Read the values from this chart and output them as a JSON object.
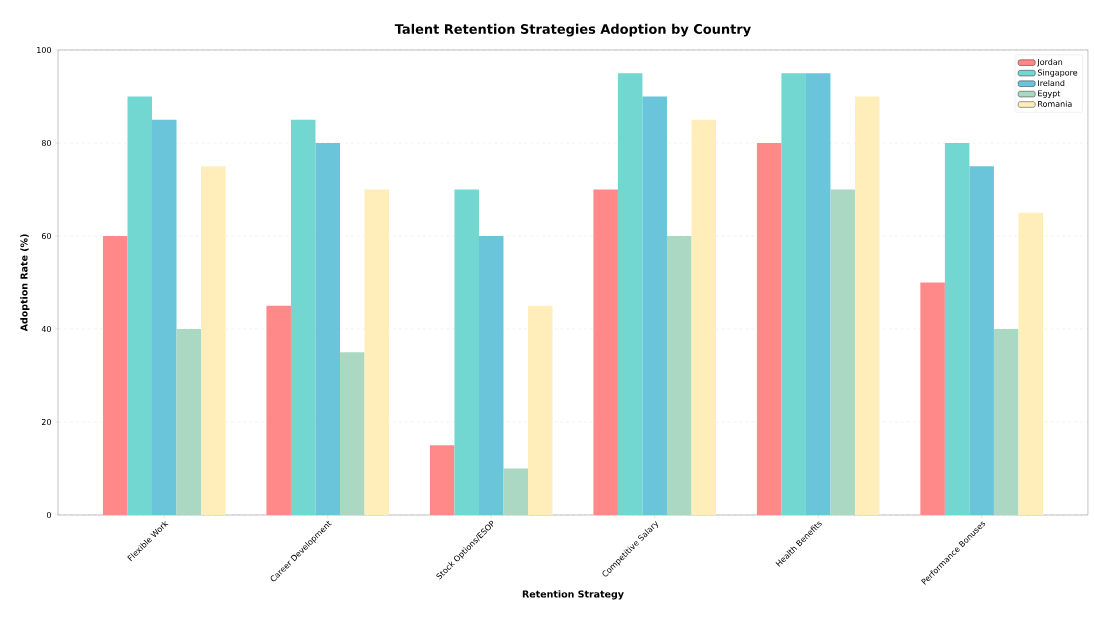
{
  "chart_data": {
    "type": "bar",
    "title": "Talent Retention Strategies Adoption by Country",
    "xlabel": "Retention Strategy",
    "ylabel": "Adoption Rate (%)",
    "categories": [
      "Flexible Work",
      "Career Development",
      "Stock Options/ESOP",
      "Competitive Salary",
      "Health Benefits",
      "Performance Bonuses"
    ],
    "series": [
      {
        "name": "Jordan",
        "color": "#ff8989",
        "values": [
          60,
          45,
          15,
          70,
          80,
          50
        ]
      },
      {
        "name": "Singapore",
        "color": "#71d7d0",
        "values": [
          90,
          85,
          70,
          95,
          95,
          80
        ]
      },
      {
        "name": "Ireland",
        "color": "#6ac5da",
        "values": [
          85,
          80,
          60,
          90,
          95,
          75
        ]
      },
      {
        "name": "Egypt",
        "color": "#abd8c3",
        "values": [
          40,
          35,
          10,
          60,
          70,
          40
        ]
      },
      {
        "name": "Romania",
        "color": "#ffeeb9",
        "values": [
          75,
          70,
          45,
          85,
          90,
          65
        ]
      }
    ],
    "ylim": [
      0,
      100
    ],
    "yticks": [
      0,
      20,
      40,
      60,
      80,
      100
    ],
    "grid": "y",
    "legend": "top right"
  }
}
